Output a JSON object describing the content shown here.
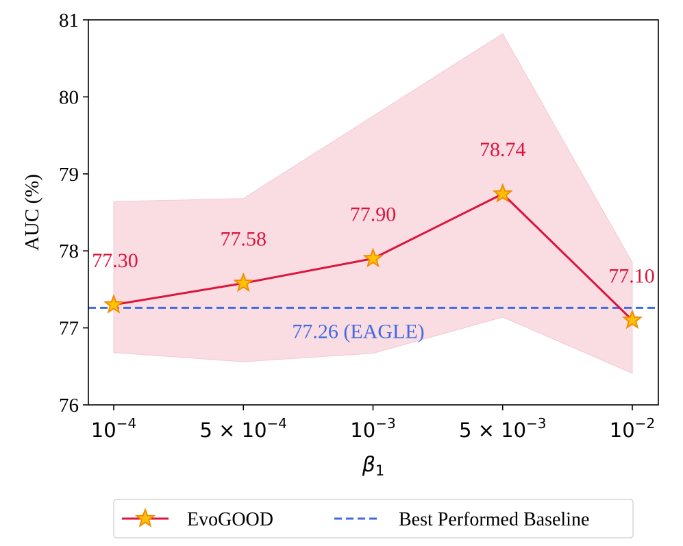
{
  "chart_data": {
    "type": "line",
    "title": "",
    "xlabel": "β1",
    "xlabel_symbol": "β",
    "xlabel_subscript": "1",
    "ylabel": "AUC (%)",
    "ylim": [
      76,
      81
    ],
    "yticks": [
      "76",
      "77",
      "78",
      "79",
      "80",
      "81"
    ],
    "categories": [
      {
        "base": "10",
        "exp": "−4",
        "prefix": ""
      },
      {
        "base": "10",
        "exp": "−4",
        "prefix": "5 × "
      },
      {
        "base": "10",
        "exp": "−3",
        "prefix": ""
      },
      {
        "base": "10",
        "exp": "−3",
        "prefix": "5 × "
      },
      {
        "base": "10",
        "exp": "−2",
        "prefix": ""
      }
    ],
    "series": [
      {
        "name": "EvoGOOD",
        "values": [
          77.3,
          77.58,
          77.9,
          78.74,
          77.1
        ],
        "labels": [
          "77.30",
          "77.58",
          "77.90",
          "78.74",
          "77.10"
        ],
        "lower": [
          76.68,
          76.56,
          76.67,
          77.14,
          76.41
        ],
        "upper": [
          78.64,
          78.68,
          79.75,
          80.82,
          77.85
        ],
        "color": "#DC143C",
        "band_color": "#F9DDE3",
        "marker_fill": "#FFC107",
        "marker_edge": "#F08C00"
      }
    ],
    "baseline": {
      "name": "Best Performed Baseline",
      "value": 77.26,
      "label": "77.26 (EAGLE)",
      "color": "#4169E1"
    },
    "legend_position": "bottom-center",
    "grid": false
  }
}
